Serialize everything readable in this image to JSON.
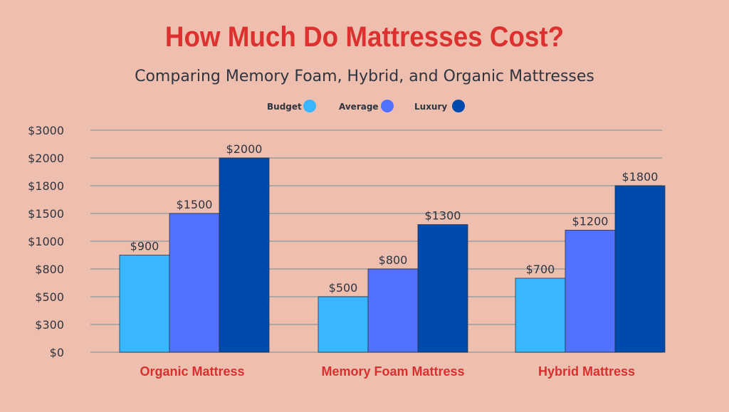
{
  "chart_data": {
    "type": "bar",
    "title": "How Much Do Mattresses Cost?",
    "subtitle": "Comparing Memory Foam, Hybrid, and Organic Mattresses",
    "categories": [
      "Organic Mattress",
      "Memory Foam Mattress",
      "Hybrid Mattress"
    ],
    "series": [
      {
        "name": "Budget",
        "color": "#38B6FF",
        "values": [
          900,
          500,
          700
        ]
      },
      {
        "name": "Average",
        "color": "#5271FF",
        "values": [
          1500,
          800,
          1200
        ]
      },
      {
        "name": "Luxury",
        "color": "#004AAD",
        "values": [
          2000,
          1300,
          1800
        ]
      }
    ],
    "y_ticks": [
      0,
      300,
      500,
      800,
      1000,
      1500,
      1800,
      2000,
      3000
    ],
    "y_tick_labels": [
      "$0",
      "$300",
      "$500",
      "$800",
      "$1000",
      "$1500",
      "$1800",
      "$2000",
      "$3000"
    ],
    "data_label_prefix": "$",
    "ylim": [
      0,
      3000
    ],
    "y_scale": "non-uniform (evenly spaced tick labels)",
    "grid": true,
    "legend_placement": "top-center",
    "colors": {
      "background": "#EEBFAE",
      "title": "#DD3130",
      "category_labels": "#D92F2E",
      "text": "#2E3440",
      "grid": "#AFA7A4"
    }
  }
}
